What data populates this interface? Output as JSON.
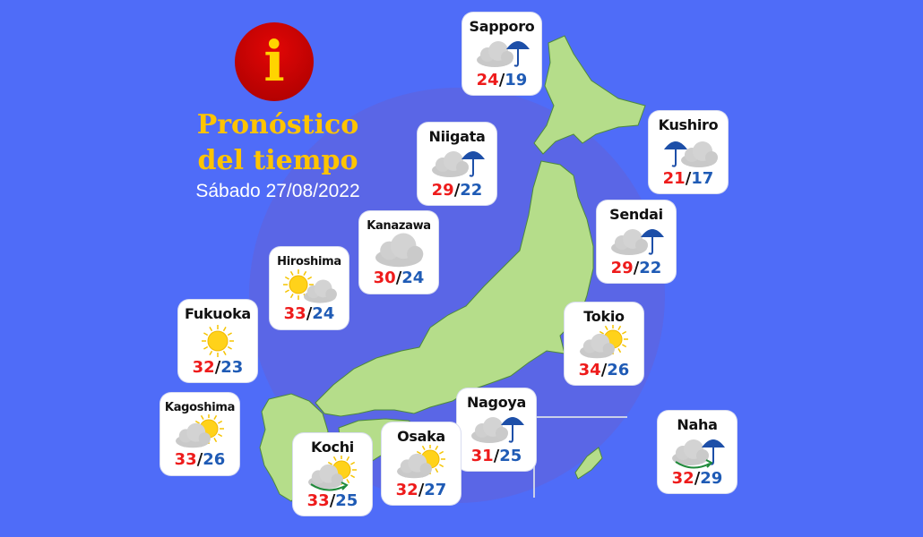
{
  "header": {
    "title_line1": "Pronóstico",
    "title_line2": "del tiempo",
    "date": "Sábado 27/08/2022",
    "info_icon": "i"
  },
  "colors": {
    "background": "#4f6cf8",
    "land": "#b5dd8a",
    "title": "#ffc400",
    "high": "#ee1b1b",
    "low": "#1f5bb5"
  },
  "cities": [
    {
      "name": "Sapporo",
      "high": "24",
      "low": "19",
      "icons": [
        "cloud",
        "umbrella"
      ]
    },
    {
      "name": "Niigata",
      "high": "29",
      "low": "22",
      "icons": [
        "cloud",
        "umbrella"
      ]
    },
    {
      "name": "Kushiro",
      "high": "21",
      "low": "17",
      "icons": [
        "umbrella-left",
        "cloud-right"
      ]
    },
    {
      "name": "Kanazawa",
      "high": "30",
      "low": "24",
      "icons": [
        "cloud-big"
      ]
    },
    {
      "name": "Sendai",
      "high": "29",
      "low": "22",
      "icons": [
        "cloud",
        "umbrella"
      ]
    },
    {
      "name": "Hiroshima",
      "high": "33",
      "low": "24",
      "icons": [
        "sun-left",
        "cloud-right"
      ]
    },
    {
      "name": "Fukuoka",
      "high": "32",
      "low": "23",
      "icons": [
        "sun-center"
      ]
    },
    {
      "name": "Tokio",
      "high": "34",
      "low": "26",
      "icons": [
        "sun",
        "cloud"
      ]
    },
    {
      "name": "Kagoshima",
      "high": "33",
      "low": "26",
      "icons": [
        "sun",
        "cloud"
      ]
    },
    {
      "name": "Nagoya",
      "high": "31",
      "low": "25",
      "icons": [
        "cloud",
        "umbrella"
      ]
    },
    {
      "name": "Osaka",
      "high": "32",
      "low": "27",
      "icons": [
        "sun",
        "cloud"
      ]
    },
    {
      "name": "Kochi",
      "high": "33",
      "low": "25",
      "icons": [
        "sun",
        "cloud",
        "arrow"
      ]
    },
    {
      "name": "Naha",
      "high": "32",
      "low": "29",
      "icons": [
        "cloud",
        "umbrella",
        "arrow"
      ]
    }
  ]
}
